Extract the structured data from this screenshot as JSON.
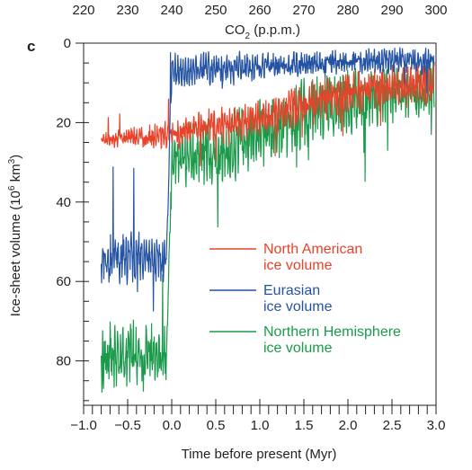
{
  "chart_data": {
    "type": "line",
    "panel_label": "c",
    "xlabel": "Time before present (Myr)",
    "ylabel": "Ice-sheet volume (10",
    "ylabel_sup": "6",
    "ylabel_unit": " km",
    "ylabel_unit_sup": "3",
    "ylabel_close": ")",
    "top_xlabel": "CO",
    "top_xlabel_sub": "2",
    "top_xlabel_unit": " (p.p.m.)",
    "xlim": [
      -1.0,
      3.0
    ],
    "ylim": [
      0,
      90
    ],
    "y_inverted": true,
    "x_ticks": [
      -1.0,
      -0.5,
      0.0,
      0.5,
      1.0,
      1.5,
      2.0,
      2.5,
      3.0
    ],
    "x_tick_labels": [
      "−1.0",
      "−0.5",
      "0.0",
      "0.5",
      "1.0",
      "1.5",
      "2.0",
      "2.5",
      "3.0"
    ],
    "y_ticks": [
      0,
      20,
      40,
      60,
      80
    ],
    "y_tick_labels": [
      "0",
      "20",
      "40",
      "60",
      "80"
    ],
    "top_axis": {
      "ticks": [
        220,
        230,
        240,
        250,
        260,
        270,
        280,
        290,
        300
      ],
      "tick_labels": [
        "220",
        "230",
        "240",
        "250",
        "260",
        "270",
        "280",
        "290",
        "300"
      ],
      "range": [
        220,
        300
      ]
    },
    "series": [
      {
        "name": "North American ice volume",
        "legend_lines": [
          "North American",
          "ice volume"
        ],
        "color": "#e8432a",
        "x": [
          -0.8,
          -0.6,
          -0.4,
          -0.2,
          -0.06,
          0.0,
          0.2,
          0.4,
          0.6,
          0.8,
          1.0,
          1.2,
          1.4,
          1.6,
          1.8,
          2.0,
          2.2,
          2.4,
          2.6,
          2.8,
          2.98
        ],
        "y_base": [
          24.5,
          24,
          23.5,
          23.5,
          23,
          23,
          22,
          21,
          20.5,
          20,
          19,
          18,
          16,
          15,
          13.5,
          12.5,
          12,
          11.5,
          11,
          10.5,
          10
        ],
        "y_amplitude": [
          2,
          2,
          2.5,
          3,
          3,
          3,
          3.5,
          4,
          4,
          4,
          4,
          4.5,
          5,
          5,
          5,
          5,
          5,
          5,
          5,
          5,
          5
        ]
      },
      {
        "name": "Eurasian ice volume",
        "legend_lines": [
          "Eurasian",
          "ice volume"
        ],
        "color": "#2553a3",
        "x": [
          -0.8,
          -0.6,
          -0.4,
          -0.2,
          -0.06,
          0.0,
          0.2,
          0.4,
          0.6,
          0.8,
          1.0,
          1.2,
          1.4,
          1.6,
          1.8,
          2.0,
          2.2,
          2.4,
          2.6,
          2.8,
          2.98
        ],
        "y_base": [
          55,
          54,
          54,
          55,
          54,
          7,
          7,
          6.5,
          6.5,
          6,
          6,
          5.5,
          5.5,
          5,
          5,
          5,
          4.5,
          4.5,
          4.5,
          4.5,
          4.5
        ],
        "y_amplitude": [
          5,
          6,
          6,
          5,
          5,
          4,
          4,
          4,
          3.5,
          3.5,
          3.5,
          3,
          3,
          3,
          3,
          3,
          3,
          3,
          3,
          3,
          3
        ]
      },
      {
        "name": "Northern Hemisphere ice volume",
        "legend_lines": [
          "Northern Hemisphere",
          "ice volume"
        ],
        "color": "#1b9a4b",
        "x": [
          -0.8,
          -0.6,
          -0.4,
          -0.2,
          -0.06,
          0.0,
          0.2,
          0.4,
          0.6,
          0.8,
          1.0,
          1.2,
          1.4,
          1.6,
          1.8,
          2.0,
          2.2,
          2.4,
          2.6,
          2.8,
          2.98
        ],
        "y_base": [
          79,
          78,
          78,
          79,
          79,
          30,
          29,
          28,
          27,
          25,
          23,
          21,
          19,
          17,
          16,
          15,
          14,
          13,
          12.5,
          12,
          11
        ],
        "y_amplitude": [
          7,
          8,
          8,
          7,
          7,
          7,
          8,
          8,
          8,
          8,
          8,
          8,
          8,
          8,
          7,
          7,
          7,
          7,
          6,
          6,
          6
        ]
      }
    ],
    "legend_placement": "center-right",
    "grid": false
  }
}
